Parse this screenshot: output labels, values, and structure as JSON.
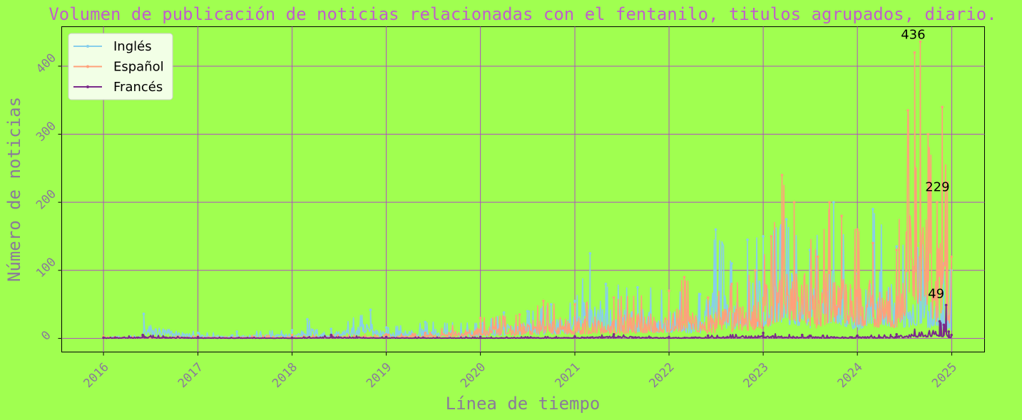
{
  "chart_data": {
    "type": "line",
    "title": "Volumen de publicación de noticias relacionadas con el fentanilo, titulos agrupados, diario.",
    "xlabel": "Línea de tiempo",
    "ylabel": "Número de noticias",
    "x_ticks": [
      "2016",
      "2017",
      "2018",
      "2019",
      "2020",
      "2021",
      "2022",
      "2023",
      "2024",
      "2025"
    ],
    "y_ticks": [
      0,
      100,
      200,
      300,
      400
    ],
    "xlim": [
      "2015-07-23",
      "2025-05-08"
    ],
    "ylim": [
      -20,
      458
    ],
    "grid": true,
    "legend_position": "upper left",
    "series": [
      {
        "name": "Inglés",
        "color": "#87ceeb",
        "x": [
          "2016-01-01",
          "2016-06-01",
          "2016-06-05",
          "2017-01-01",
          "2017-06-01",
          "2018-01-01",
          "2018-03-01",
          "2018-06-01",
          "2018-11-01",
          "2019-01-01",
          "2019-06-01",
          "2020-01-01",
          "2020-04-01",
          "2020-07-01",
          "2020-10-01",
          "2021-01-01",
          "2021-03-01",
          "2021-05-01",
          "2021-09-01",
          "2022-01-01",
          "2022-05-01",
          "2022-07-01",
          "2022-09-01",
          "2022-11-01",
          "2023-01-01",
          "2023-04-01",
          "2023-07-01",
          "2023-10-01",
          "2024-01-01",
          "2024-03-01",
          "2024-06-01",
          "2024-09-01",
          "2024-12-01",
          "2024-12-31"
        ],
        "values": [
          2,
          5,
          36,
          8,
          10,
          12,
          28,
          14,
          42,
          16,
          24,
          22,
          38,
          40,
          50,
          55,
          125,
          80,
          75,
          70,
          65,
          160,
          110,
          145,
          150,
          175,
          130,
          200,
          95,
          190,
          135,
          140,
          110,
          100
        ]
      },
      {
        "name": "Español",
        "color": "#ffa07a",
        "x": [
          "2016-01-01",
          "2016-06-01",
          "2017-01-01",
          "2018-01-01",
          "2019-01-01",
          "2019-06-01",
          "2020-01-01",
          "2020-06-01",
          "2020-09-01",
          "2021-01-01",
          "2021-06-01",
          "2022-01-01",
          "2022-03-01",
          "2022-06-01",
          "2022-09-01",
          "2022-12-01",
          "2023-02-01",
          "2023-03-15",
          "2023-05-01",
          "2023-08-01",
          "2023-09-15",
          "2023-11-01",
          "2024-01-01",
          "2024-03-01",
          "2024-06-01",
          "2024-07-15",
          "2024-08-10",
          "2024-09-01",
          "2024-10-01",
          "2024-11-05",
          "2024-11-25",
          "2024-12-15",
          "2024-12-31"
        ],
        "values": [
          3,
          3,
          4,
          5,
          6,
          8,
          30,
          35,
          55,
          50,
          60,
          70,
          90,
          60,
          80,
          100,
          150,
          240,
          200,
          120,
          200,
          180,
          160,
          140,
          130,
          335,
          420,
          436,
          300,
          200,
          340,
          229,
          120
        ]
      },
      {
        "name": "Francés",
        "color": "#7a2a8a",
        "x": [
          "2016-01-01",
          "2016-06-01",
          "2017-01-01",
          "2018-01-01",
          "2018-06-01",
          "2019-01-01",
          "2020-01-01",
          "2021-01-01",
          "2021-06-01",
          "2022-01-01",
          "2022-06-01",
          "2023-01-01",
          "2023-06-01",
          "2024-01-01",
          "2024-06-01",
          "2024-11-15",
          "2024-12-01",
          "2024-12-10",
          "2024-12-20",
          "2024-12-31"
        ],
        "values": [
          1,
          5,
          2,
          1,
          5,
          2,
          2,
          3,
          6,
          2,
          4,
          8,
          5,
          4,
          6,
          25,
          20,
          49,
          10,
          5
        ]
      }
    ],
    "annotations": [
      {
        "text": "436",
        "x": "2024-09-01",
        "y": 436
      },
      {
        "text": "229",
        "x": "2024-12-15",
        "y": 229
      },
      {
        "text": "49",
        "x": "2024-12-10",
        "y": 49
      }
    ]
  }
}
